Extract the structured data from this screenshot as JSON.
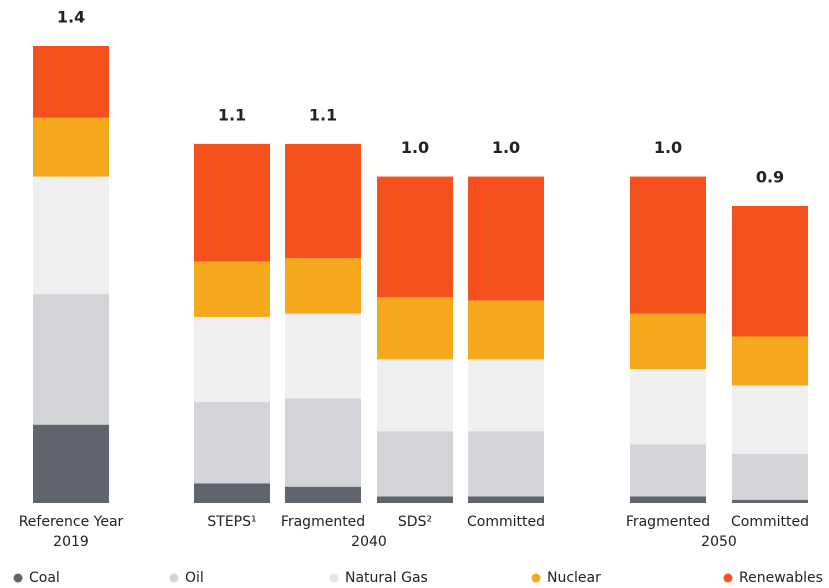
{
  "chart_data": {
    "type": "stacked-bar",
    "groups": [
      {
        "name": "2019",
        "categories": [
          "Reference Year"
        ]
      },
      {
        "name": "2040",
        "categories": [
          "STEPS¹",
          "Fragmented",
          "SDS²",
          "Committed"
        ]
      },
      {
        "name": "2050",
        "categories": [
          "Fragmented",
          "Committed"
        ]
      }
    ],
    "series": [
      {
        "name": "Coal",
        "color": "#5f646d",
        "values": [
          0.24,
          0.06,
          0.05,
          0.02,
          0.02,
          0.02,
          0.01
        ]
      },
      {
        "name": "Oil",
        "color": "#d3d4d8",
        "values": [
          0.4,
          0.25,
          0.27,
          0.2,
          0.2,
          0.16,
          0.14
        ]
      },
      {
        "name": "Natural Gas",
        "color": "#efefef",
        "values": [
          0.36,
          0.26,
          0.26,
          0.22,
          0.22,
          0.23,
          0.21
        ]
      },
      {
        "name": "Nuclear",
        "color": "#f5a81c",
        "values": [
          0.18,
          0.17,
          0.17,
          0.19,
          0.18,
          0.17,
          0.15
        ]
      },
      {
        "name": "Renewables",
        "color": "#f4511e",
        "values": [
          0.22,
          0.36,
          0.35,
          0.37,
          0.38,
          0.42,
          0.4
        ]
      }
    ],
    "totals": [
      1.4,
      1.1,
      1.1,
      1.0,
      1.0,
      1.0,
      0.9
    ],
    "value_labels": [
      "1.4",
      "1.1",
      "1.1",
      "1.0",
      "1.0",
      "1.0",
      "0.9"
    ],
    "legend": "bottom"
  }
}
